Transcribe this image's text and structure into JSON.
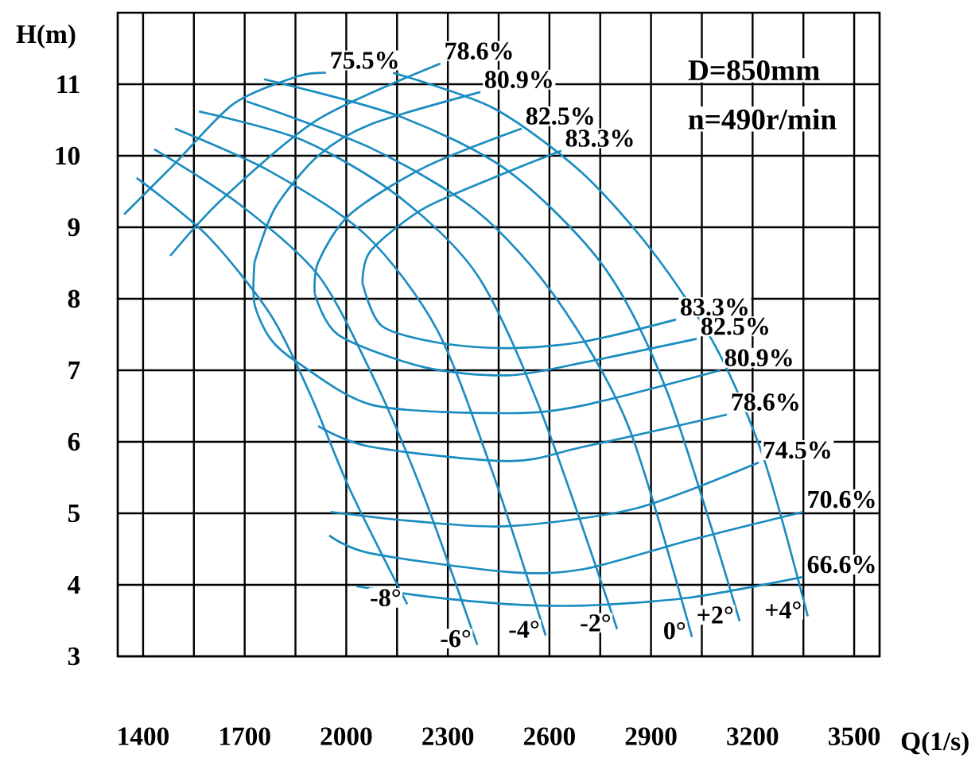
{
  "chart_data": {
    "type": "line",
    "xlabel": "Q(1/s)",
    "ylabel": "H(m)",
    "xlim": [
      1325,
      3575
    ],
    "ylim": [
      3,
      12
    ],
    "xticks": [
      1400,
      {
        "value": 1550,
        "label": null
      },
      1700,
      {
        "value": 1850,
        "label": null
      },
      2000,
      {
        "value": 2150,
        "label": null
      },
      2300,
      {
        "value": 2450,
        "label": null
      },
      2600,
      {
        "value": 2750,
        "label": null
      },
      2900,
      {
        "value": 3050,
        "label": null
      },
      3200,
      {
        "value": 3350,
        "label": null
      },
      3500
    ],
    "yticks": [
      3,
      4,
      5,
      6,
      7,
      8,
      9,
      10,
      11
    ],
    "grid": true,
    "marker": "none",
    "annotations": [
      "D=850mm",
      "n=490r/min"
    ],
    "series": [
      {
        "name": "75.5%",
        "color": "#1a8cbf",
        "x": [
          1344,
          1494,
          1668,
          1856,
          1940
        ],
        "values": [
          9.18,
          9.89,
          10.73,
          11.11,
          11.16
        ]
      },
      {
        "name": "78.6%",
        "color": "#1a8cbf",
        "x": [
          1480,
          1635,
          1917,
          2278
        ],
        "values": [
          8.6,
          9.4,
          10.51,
          11.29
        ]
      },
      {
        "name": "80.9%",
        "color": "#1a8cbf",
        "x": [
          1729,
          1790,
          1917,
          2072,
          2396
        ],
        "values": [
          8.51,
          9.27,
          10.0,
          10.44,
          10.89
        ]
      },
      {
        "name": "82.5%",
        "color": "#1a8cbf",
        "x": [
          1907,
          1917,
          2011,
          2232,
          2518
        ],
        "values": [
          8.07,
          8.51,
          9.18,
          9.84,
          10.38
        ]
      },
      {
        "name": "83.3%",
        "color": "#1a8cbf",
        "x": [
          2048,
          2072,
          2232,
          2480,
          2635
        ],
        "values": [
          8.22,
          8.67,
          9.27,
          9.78,
          10.07
        ]
      },
      {
        "name": "83.3%",
        "color": "#1a8cbf",
        "x": [
          2048,
          2105,
          2278,
          2480,
          2701,
          2974
        ],
        "values": [
          8.22,
          7.62,
          7.38,
          7.31,
          7.4,
          7.71
        ]
      },
      {
        "name": "82.5%",
        "color": "#1a8cbf",
        "x": [
          1907,
          1978,
          2232,
          2480,
          2701,
          3035
        ],
        "values": [
          8.07,
          7.49,
          7.04,
          6.93,
          7.11,
          7.44
        ]
      },
      {
        "name": "80.9%",
        "color": "#1a8cbf",
        "x": [
          1729,
          1729,
          1776,
          1856,
          2081,
          2480,
          2701,
          3105
        ],
        "values": [
          8.51,
          7.93,
          7.44,
          7.11,
          6.51,
          6.4,
          6.51,
          7.0
        ]
      },
      {
        "name": "78.6%",
        "color": "#1a8cbf",
        "x": [
          1917,
          2072,
          2480,
          2701,
          3124
        ],
        "values": [
          6.22,
          5.93,
          5.73,
          5.93,
          6.38
        ]
      },
      {
        "name": "74.5%",
        "color": "#1a8cbf",
        "x": [
          1954,
          2199,
          2480,
          2856,
          3218
        ],
        "values": [
          5.02,
          4.89,
          4.82,
          5.07,
          5.71
        ]
      },
      {
        "name": "70.6%",
        "color": "#1a8cbf",
        "x": [
          1950,
          2072,
          2480,
          2701,
          3011,
          3349
        ],
        "values": [
          4.69,
          4.44,
          4.18,
          4.22,
          4.62,
          5.02
        ]
      },
      {
        "name": "66.6%",
        "color": "#1a8cbf",
        "x": [
          2030,
          2232,
          2480,
          2701,
          3011,
          3349
        ],
        "values": [
          3.98,
          3.84,
          3.73,
          3.71,
          3.82,
          4.11
        ]
      },
      {
        "name": "-8°",
        "color": "#1a8cbf",
        "x": [
          1381,
          1588,
          1776,
          1893,
          2011,
          2180
        ],
        "values": [
          9.69,
          8.89,
          7.78,
          6.67,
          5.33,
          3.73
        ]
      },
      {
        "name": "-6°",
        "color": "#1a8cbf",
        "x": [
          1433,
          1682,
          1917,
          2081,
          2222,
          2387
        ],
        "values": [
          10.09,
          9.33,
          8.33,
          6.89,
          5.33,
          3.16
        ]
      },
      {
        "name": "-4°",
        "color": "#1a8cbf",
        "x": [
          1494,
          1776,
          2058,
          2269,
          2433,
          2589
        ],
        "values": [
          10.38,
          9.78,
          8.89,
          7.56,
          5.56,
          3.29
        ]
      },
      {
        "name": "-2°",
        "color": "#1a8cbf",
        "x": [
          1565,
          1870,
          2152,
          2387,
          2574,
          2800
        ],
        "values": [
          10.62,
          10.22,
          9.44,
          8.33,
          6.44,
          3.38
        ]
      },
      {
        "name": "0°",
        "color": "#1a8cbf",
        "x": [
          1705,
          2072,
          2387,
          2621,
          2833,
          3021
        ],
        "values": [
          10.76,
          10.11,
          9.22,
          8.0,
          6.22,
          3.27
        ]
      },
      {
        "name": "+2°",
        "color": "#1a8cbf",
        "x": [
          1757,
          2152,
          2480,
          2762,
          2950,
          3162
        ],
        "values": [
          11.07,
          10.56,
          9.78,
          8.44,
          6.67,
          3.49
        ]
      },
      {
        "name": "+4°",
        "color": "#1a8cbf",
        "x": [
          2138,
          2433,
          2692,
          2903,
          3091,
          3232,
          3363
        ],
        "values": [
          11.16,
          10.67,
          9.78,
          8.67,
          7.33,
          5.78,
          3.56
        ]
      }
    ]
  }
}
